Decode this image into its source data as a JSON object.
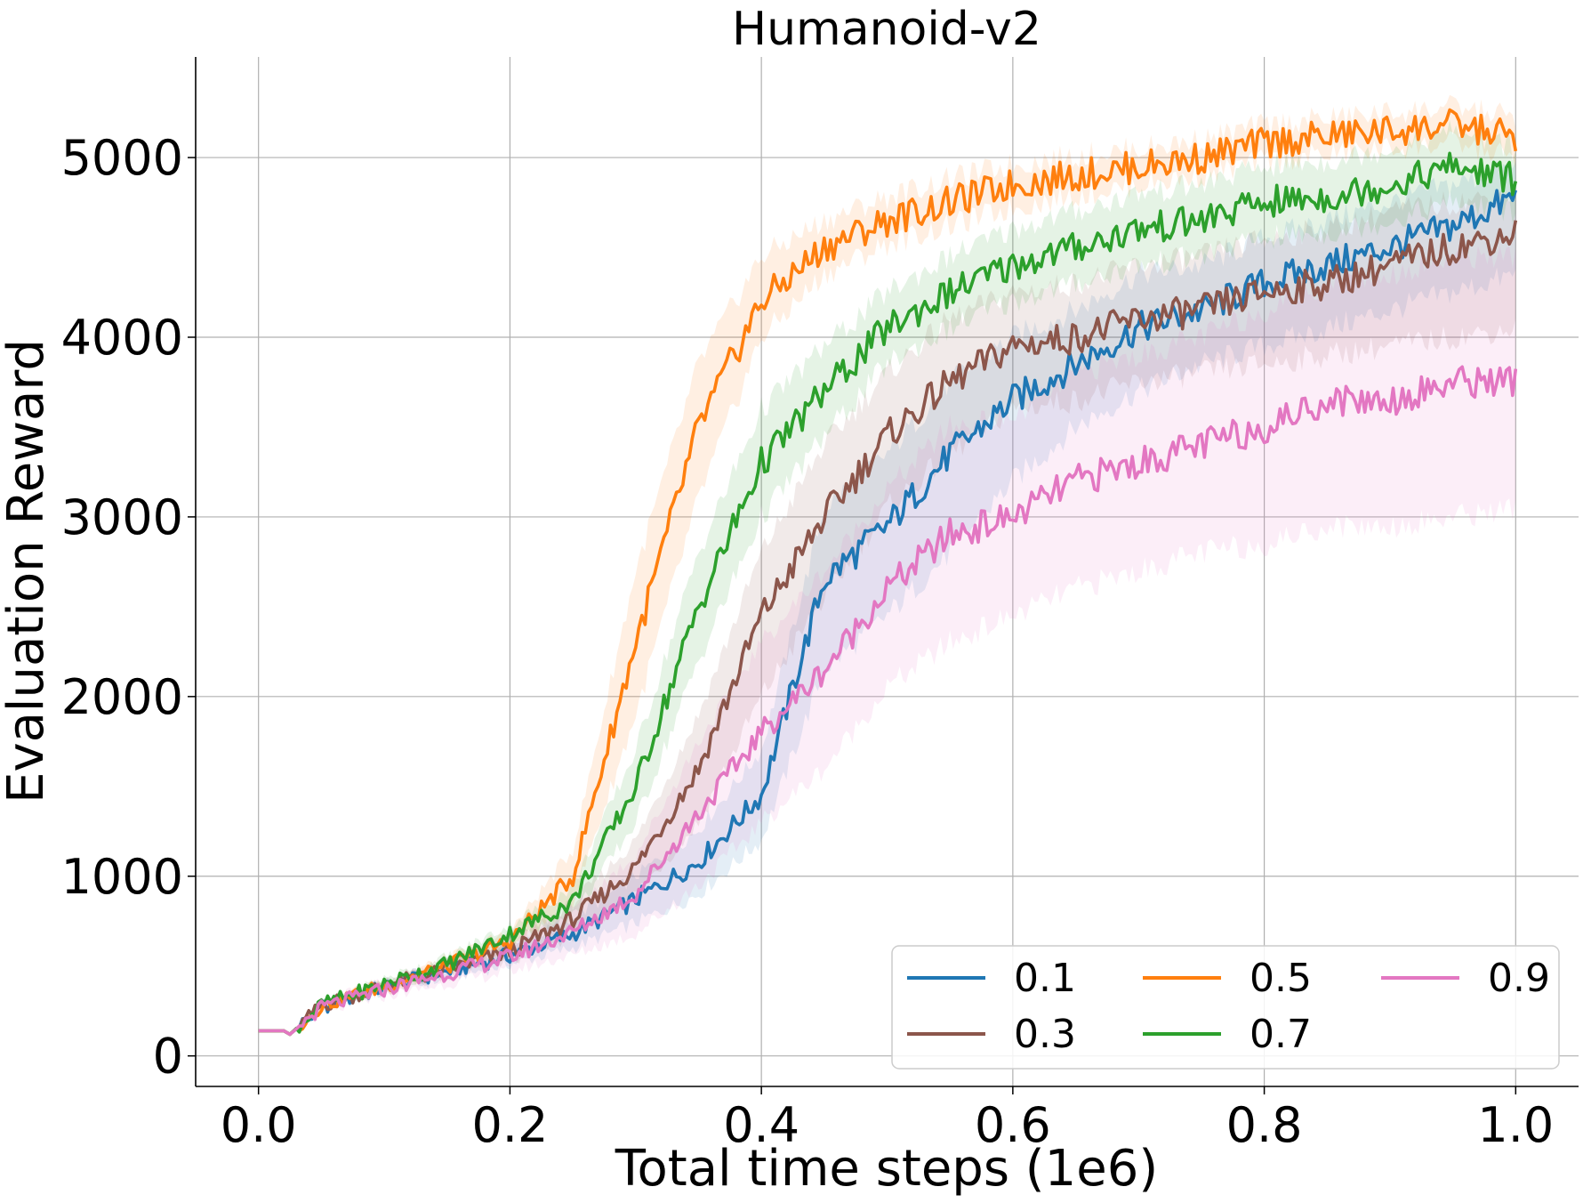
{
  "chart_data": {
    "type": "line",
    "title": "Humanoid-v2",
    "xlabel": "Total time steps (1e6)",
    "ylabel": "Evaluation Reward",
    "xlim": [
      -0.05,
      1.05
    ],
    "ylim": [
      -170,
      5560
    ],
    "xticks": [
      0.0,
      0.2,
      0.4,
      0.6,
      0.8,
      1.0
    ],
    "xtick_labels": [
      "0.0",
      "0.2",
      "0.4",
      "0.6",
      "0.8",
      "1.0"
    ],
    "yticks": [
      0,
      1000,
      2000,
      3000,
      4000,
      5000
    ],
    "ytick_labels": [
      "0",
      "1000",
      "2000",
      "3000",
      "4000",
      "5000"
    ],
    "grid": true,
    "legend_position": "lower-right",
    "legend_columns": 3,
    "x": [
      0.0,
      0.02,
      0.025,
      0.05,
      0.1,
      0.15,
      0.2,
      0.25,
      0.3,
      0.35,
      0.4,
      0.45,
      0.5,
      0.55,
      0.6,
      0.65,
      0.7,
      0.75,
      0.8,
      0.85,
      0.9,
      0.95,
      1.0
    ],
    "series": [
      {
        "name": "0.1",
        "color": "#1f77b4",
        "values": [
          140,
          140,
          120,
          270,
          380,
          470,
          560,
          680,
          870,
          1080,
          1450,
          2650,
          2950,
          3350,
          3650,
          3850,
          4050,
          4150,
          4300,
          4400,
          4500,
          4620,
          4780
        ],
        "lower": [
          140,
          140,
          110,
          250,
          350,
          430,
          510,
          600,
          740,
          900,
          1200,
          2150,
          2450,
          2800,
          3200,
          3500,
          3700,
          3850,
          3950,
          4050,
          4150,
          4250,
          4350
        ],
        "upper": [
          140,
          140,
          130,
          290,
          410,
          510,
          610,
          760,
          1000,
          1260,
          1700,
          3050,
          3350,
          3750,
          4000,
          4150,
          4350,
          4400,
          4550,
          4650,
          4750,
          4850,
          4950
        ]
      },
      {
        "name": "0.3",
        "color": "#8c564b",
        "values": [
          140,
          140,
          120,
          280,
          390,
          480,
          580,
          760,
          1050,
          1600,
          2450,
          3000,
          3450,
          3750,
          3950,
          4000,
          4100,
          4150,
          4250,
          4300,
          4400,
          4500,
          4580
        ],
        "lower": [
          140,
          140,
          110,
          260,
          360,
          440,
          530,
          670,
          900,
          1300,
          2000,
          2550,
          3050,
          3350,
          3600,
          3650,
          3750,
          3800,
          3850,
          3900,
          3950,
          4000,
          4050
        ],
        "upper": [
          140,
          140,
          130,
          300,
          420,
          520,
          630,
          850,
          1200,
          1900,
          2800,
          3400,
          3800,
          4100,
          4250,
          4300,
          4400,
          4450,
          4550,
          4600,
          4700,
          4750,
          4800
        ]
      },
      {
        "name": "0.5",
        "color": "#ff7f0e",
        "values": [
          140,
          140,
          120,
          280,
          390,
          500,
          640,
          1000,
          2300,
          3500,
          4200,
          4500,
          4650,
          4750,
          4850,
          4900,
          4950,
          5000,
          5080,
          5120,
          5150,
          5180,
          5120
        ],
        "lower": [
          140,
          140,
          110,
          260,
          360,
          460,
          590,
          860,
          1900,
          3100,
          4000,
          4350,
          4520,
          4620,
          4720,
          4790,
          4850,
          4900,
          4980,
          5020,
          5050,
          5080,
          5000
        ],
        "upper": [
          140,
          140,
          130,
          300,
          420,
          540,
          690,
          1150,
          2700,
          3850,
          4450,
          4650,
          4780,
          4880,
          4960,
          5010,
          5050,
          5100,
          5180,
          5220,
          5250,
          5280,
          5230
        ]
      },
      {
        "name": "0.7",
        "color": "#2ca02c",
        "values": [
          140,
          140,
          120,
          285,
          400,
          510,
          680,
          860,
          1500,
          2500,
          3300,
          3700,
          4050,
          4250,
          4400,
          4500,
          4600,
          4650,
          4750,
          4780,
          4850,
          4950,
          4880
        ],
        "lower": [
          140,
          140,
          110,
          265,
          370,
          470,
          630,
          780,
          1300,
          2200,
          3000,
          3450,
          3850,
          4050,
          4200,
          4300,
          4400,
          4450,
          4550,
          4580,
          4650,
          4750,
          4700
        ],
        "upper": [
          140,
          140,
          130,
          305,
          430,
          550,
          730,
          940,
          1700,
          2800,
          3600,
          3950,
          4250,
          4450,
          4600,
          4700,
          4800,
          4850,
          4950,
          4980,
          5050,
          5150,
          5050
        ]
      },
      {
        "name": "0.9",
        "color": "#e377c2",
        "values": [
          140,
          140,
          120,
          270,
          370,
          460,
          550,
          690,
          900,
          1350,
          1800,
          2150,
          2600,
          2900,
          3000,
          3200,
          3300,
          3400,
          3500,
          3650,
          3650,
          3750,
          3760
        ],
        "lower": [
          140,
          140,
          110,
          240,
          330,
          400,
          470,
          560,
          680,
          950,
          1300,
          1600,
          2050,
          2300,
          2450,
          2600,
          2700,
          2800,
          2850,
          2950,
          2950,
          3000,
          3050
        ],
        "upper": [
          140,
          140,
          130,
          300,
          410,
          520,
          630,
          820,
          1120,
          1750,
          2300,
          2700,
          3150,
          3500,
          3550,
          3800,
          3900,
          4000,
          4150,
          4300,
          4350,
          4450,
          4450
        ]
      }
    ],
    "legend_order": [
      "0.1",
      "0.5",
      "0.9",
      "0.3",
      "0.7"
    ]
  }
}
